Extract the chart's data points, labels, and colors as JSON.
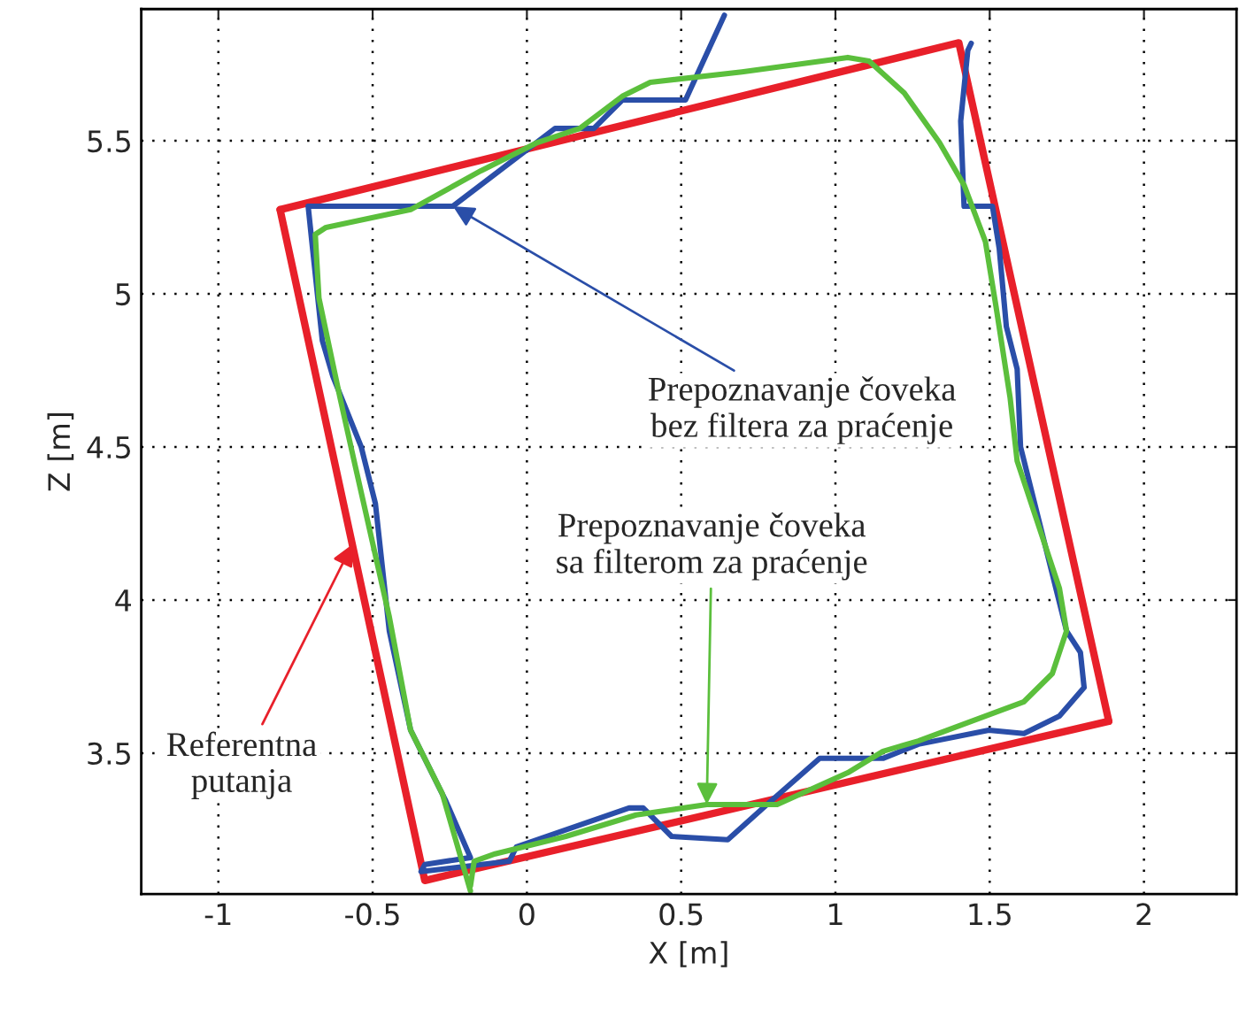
{
  "chart_data": {
    "type": "line",
    "xlabel": "X [m]",
    "ylabel": "Z [m]",
    "xlim": [
      -1.25,
      2.3
    ],
    "ylim": [
      3.04,
      5.93
    ],
    "xticks": [
      -1,
      -0.5,
      0,
      0.5,
      1,
      1.5,
      2
    ],
    "yticks": [
      3.5,
      4,
      4.5,
      5,
      5.5
    ],
    "grid": true,
    "line_style": "solid",
    "marker": "none",
    "series": [
      {
        "color": "#e8202a",
        "x": [
          -0.8,
          1.4,
          1.886
        ],
        "values": [
          5.275,
          5.82,
          3.604
        ]
      },
      {
        "color": "#e8202a",
        "x": [
          1.886,
          -0.331,
          -0.8
        ],
        "values": [
          3.604,
          3.084,
          5.275
        ]
      },
      {
        "color": "#2a4ea8",
        "x": [
          0.64,
          0.514,
          0.309,
          0.217,
          0.091,
          -0.24,
          -0.709,
          -0.697,
          -0.663,
          -0.629,
          -0.537,
          -0.491,
          -0.446,
          -0.377,
          -0.263,
          -0.183,
          -0.331,
          -0.343,
          -0.057,
          -0.034,
          0.331,
          0.377,
          0.469,
          0.651,
          0.766,
          0.949,
          1.154,
          1.269,
          1.497,
          1.611,
          1.726,
          1.806,
          1.794,
          1.749,
          1.6,
          1.589,
          1.554,
          1.531,
          1.509,
          1.417,
          1.406,
          1.429,
          1.44
        ],
        "values": [
          5.91,
          5.633,
          5.633,
          5.54,
          5.54,
          5.286,
          5.286,
          5.17,
          4.847,
          4.731,
          4.5,
          4.315,
          3.899,
          3.575,
          3.344,
          3.159,
          3.136,
          3.113,
          3.147,
          3.194,
          3.321,
          3.321,
          3.228,
          3.217,
          3.321,
          3.483,
          3.483,
          3.529,
          3.575,
          3.564,
          3.621,
          3.714,
          3.829,
          3.899,
          4.5,
          4.754,
          4.893,
          5.147,
          5.286,
          5.286,
          5.564,
          5.795,
          5.818
        ]
      },
      {
        "color": "#5bbf3c",
        "x": [
          -0.183,
          -0.274,
          -0.377,
          -0.446,
          -0.56,
          -0.606,
          -0.674,
          -0.686,
          -0.651,
          -0.377,
          -0.149,
          0.034,
          0.171,
          0.309,
          0.4,
          0.697,
          1.04,
          1.109,
          1.223,
          1.337,
          1.417,
          1.486,
          1.52,
          1.566,
          1.589,
          1.726,
          1.749,
          1.703,
          1.611,
          1.269,
          1.154,
          1.04,
          0.811,
          0.583,
          0.354,
          0.126,
          -0.103,
          -0.171,
          -0.183
        ],
        "values": [
          3.05,
          3.367,
          3.575,
          3.945,
          4.454,
          4.662,
          4.986,
          5.194,
          5.217,
          5.275,
          5.402,
          5.494,
          5.54,
          5.645,
          5.691,
          5.725,
          5.772,
          5.76,
          5.656,
          5.494,
          5.355,
          5.171,
          4.962,
          4.662,
          4.454,
          4.038,
          3.899,
          3.76,
          3.668,
          3.54,
          3.506,
          3.436,
          3.332,
          3.332,
          3.298,
          3.228,
          3.171,
          3.147,
          3.066
        ]
      }
    ],
    "annotations": [
      {
        "text": "Referentna\nputanja",
        "x": -0.566,
        "y": 4.182
      },
      {
        "text": "Prepoznavanje čoveka\nbez filtera za praćenje",
        "x": -0.24,
        "y": 5.286
      },
      {
        "text": "Prepoznavanje čoveka\nsa filterom za praćenje",
        "x": 0.583,
        "y": 3.332
      }
    ]
  }
}
